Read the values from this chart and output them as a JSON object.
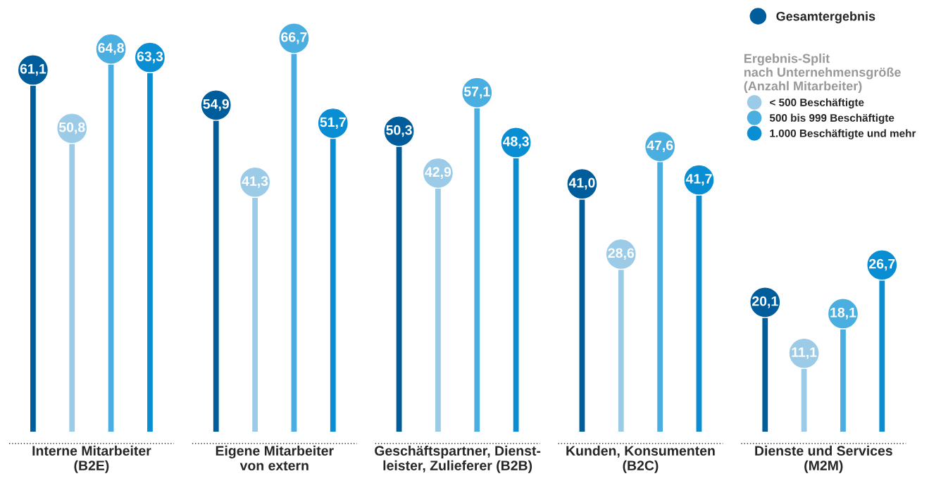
{
  "chart_data": {
    "categories": [
      "Interne Mitarbeiter\n(B2E)",
      "Eigene Mitarbeiter\nvon extern",
      "Geschäftspartner, Dienst-\nleister, Zulieferer (B2B)",
      "Kunden, Konsumenten\n(B2C)",
      "Dienste und Services\n(M2M)"
    ],
    "series": [
      {
        "name": "Gesamtergebnis",
        "color": "#005d9c",
        "values": [
          61.1,
          54.9,
          50.3,
          41.0,
          20.1
        ],
        "value_labels": [
          "61,1",
          "54,9",
          "50,3",
          "41,0",
          "20,1"
        ]
      },
      {
        "name": "< 500 Beschäftigte",
        "color": "#9ccbe8",
        "values": [
          50.8,
          41.3,
          42.9,
          28.6,
          11.1
        ],
        "value_labels": [
          "50,8",
          "41,3",
          "42,9",
          "28,6",
          "11,1"
        ]
      },
      {
        "name": "500 bis 999 Beschäftigte",
        "color": "#4aafe0",
        "values": [
          64.8,
          66.7,
          57.1,
          47.6,
          18.1
        ],
        "value_labels": [
          "64,8",
          "66,7",
          "57,1",
          "47,6",
          "18,1"
        ]
      },
      {
        "name": "1.000 Beschäftigte und mehr",
        "color": "#0a8ed3",
        "values": [
          63.3,
          51.7,
          48.3,
          41.7,
          26.7
        ],
        "value_labels": [
          "63,3",
          "51,7",
          "48,3",
          "41,7",
          "26,7"
        ]
      }
    ],
    "legend_title": "Ergebnis-Split\nnach Unternehmensgröße\n(Anzahl Mitarbeiter)",
    "legend": "top right",
    "type": "bar"
  }
}
